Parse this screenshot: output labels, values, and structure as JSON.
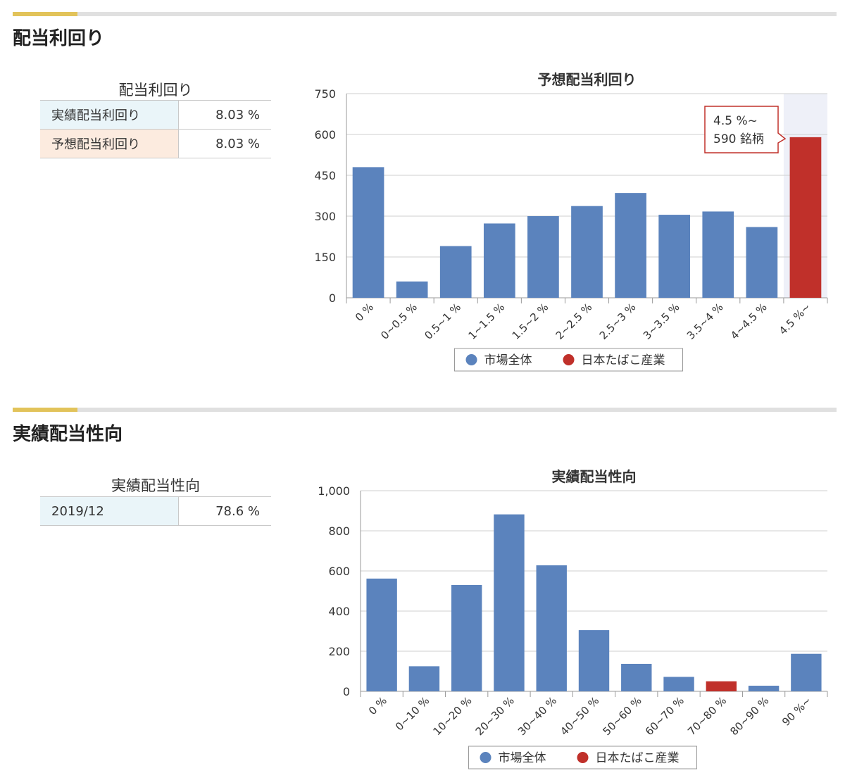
{
  "sections": {
    "yield": {
      "heading": "配当利回り",
      "table": {
        "caption": "配当利回り",
        "rows": [
          {
            "label": "実績配当利回り",
            "value": "8.03 %"
          },
          {
            "label": "予想配当利回り",
            "value": "8.03 %"
          }
        ]
      }
    },
    "payout": {
      "heading": "実績配当性向",
      "table": {
        "caption": "実績配当性向",
        "rows": [
          {
            "label": "2019/12",
            "value": "78.6 %"
          }
        ]
      }
    }
  },
  "colors": {
    "market": "#5b83bd",
    "company": "#c0302a",
    "accent": "#e2c35a"
  },
  "chart_data": [
    {
      "type": "bar",
      "title": "予想配当利回り",
      "categories": [
        "0 %",
        "0~0.5 %",
        "0.5~1 %",
        "1~1.5 %",
        "1.5~2 %",
        "2~2.5 %",
        "2.5~3 %",
        "3~3.5 %",
        "3.5~4 %",
        "4~4.5 %",
        "4.5 %~"
      ],
      "values": [
        480,
        60,
        190,
        273,
        300,
        337,
        385,
        305,
        317,
        260,
        590
      ],
      "highlight_index": 10,
      "ylim": [
        0,
        750
      ],
      "yticks": [
        "0",
        "150",
        "300",
        "450",
        "600",
        "750"
      ],
      "ytick_values": [
        0,
        150,
        300,
        450,
        600,
        750
      ],
      "grid": true,
      "legend": [
        "市場全体",
        "日本たばこ産業"
      ],
      "legend_position": "bottom",
      "tooltip": {
        "line1": "4.5 %~",
        "line2": "590 銘柄"
      }
    },
    {
      "type": "bar",
      "title": "実績配当性向",
      "categories": [
        "0 %",
        "0~10 %",
        "10~20 %",
        "20~30 %",
        "30~40 %",
        "40~50 %",
        "50~60 %",
        "60~70 %",
        "70~80 %",
        "80~90 %",
        "90 %~"
      ],
      "values": [
        562,
        125,
        530,
        882,
        628,
        305,
        137,
        72,
        50,
        28,
        187
      ],
      "highlight_index": 8,
      "ylim": [
        0,
        1000
      ],
      "yticks": [
        "0",
        "200",
        "400",
        "600",
        "800",
        "1,000"
      ],
      "ytick_values": [
        0,
        200,
        400,
        600,
        800,
        1000
      ],
      "grid": true,
      "legend": [
        "市場全体",
        "日本たばこ産業"
      ],
      "legend_position": "bottom"
    }
  ]
}
